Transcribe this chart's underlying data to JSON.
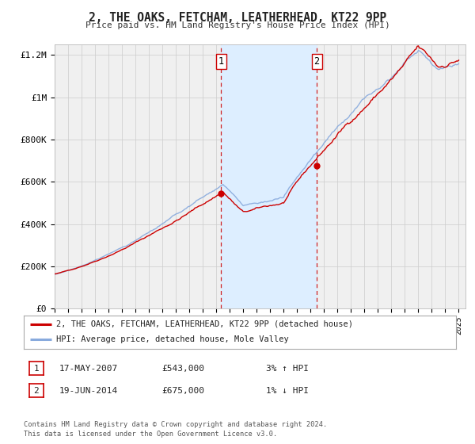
{
  "title": "2, THE OAKS, FETCHAM, LEATHERHEAD, KT22 9PP",
  "subtitle": "Price paid vs. HM Land Registry's House Price Index (HPI)",
  "legend_line1": "2, THE OAKS, FETCHAM, LEATHERHEAD, KT22 9PP (detached house)",
  "legend_line2": "HPI: Average price, detached house, Mole Valley",
  "transaction1_date": "17-MAY-2007",
  "transaction1_price": "£543,000",
  "transaction1_hpi": "3% ↑ HPI",
  "transaction2_date": "19-JUN-2014",
  "transaction2_price": "£675,000",
  "transaction2_hpi": "1% ↓ HPI",
  "footer1": "Contains HM Land Registry data © Crown copyright and database right 2024.",
  "footer2": "This data is licensed under the Open Government Licence v3.0.",
  "sale1_date_num": 2007.37,
  "sale1_value": 543000,
  "sale2_date_num": 2014.46,
  "sale2_value": 675000,
  "red_line_color": "#cc0000",
  "blue_line_color": "#88aadd",
  "shaded_region_color": "#ddeeff",
  "grid_color": "#cccccc",
  "background_color": "#ffffff",
  "plot_bg_color": "#f0f0f0",
  "ylim": [
    0,
    1250000
  ],
  "xlim_start": 1995.0,
  "xlim_end": 2025.5,
  "yticks": [
    0,
    200000,
    400000,
    600000,
    800000,
    1000000,
    1200000
  ],
  "ytick_labels": [
    "£0",
    "£200K",
    "£400K",
    "£600K",
    "£800K",
    "£1M",
    "£1.2M"
  ],
  "xticks": [
    1995,
    1996,
    1997,
    1998,
    1999,
    2000,
    2001,
    2002,
    2003,
    2004,
    2005,
    2006,
    2007,
    2008,
    2009,
    2010,
    2011,
    2012,
    2013,
    2014,
    2015,
    2016,
    2017,
    2018,
    2019,
    2020,
    2021,
    2022,
    2023,
    2024,
    2025
  ]
}
